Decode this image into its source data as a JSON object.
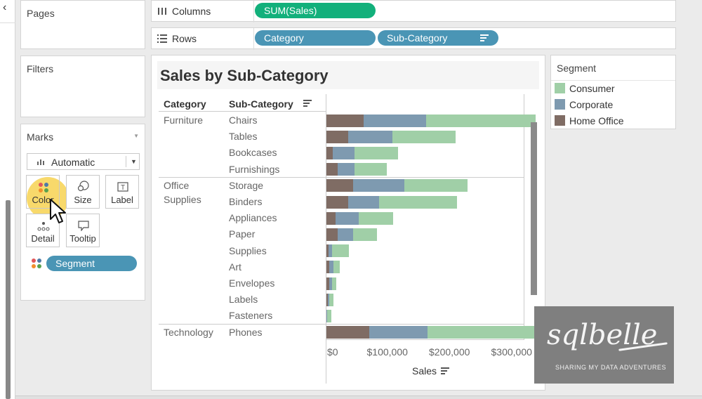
{
  "pages": {
    "title": "Pages"
  },
  "filters": {
    "title": "Filters"
  },
  "marks": {
    "title": "Marks",
    "mark_type": "Automatic",
    "buttons": {
      "color": "Color",
      "size": "Size",
      "label": "Label",
      "detail": "Detail",
      "tooltip": "Tooltip"
    },
    "color_pill": "Segment"
  },
  "shelves": {
    "columns": {
      "label": "Columns",
      "pills": [
        "SUM(Sales)"
      ]
    },
    "rows": {
      "label": "Rows",
      "pills": [
        "Category",
        "Sub-Category"
      ]
    }
  },
  "view": {
    "title": "Sales by Sub-Category",
    "headers": {
      "category": "Category",
      "subcategory": "Sub-Category"
    },
    "axis": {
      "title": "Sales",
      "ticks": [
        "$0",
        "$100,000",
        "$200,000",
        "$300,000"
      ]
    }
  },
  "legend": {
    "title": "Segment",
    "items": [
      {
        "label": "Consumer",
        "color": "#a0cfa7"
      },
      {
        "label": "Corporate",
        "color": "#7e9ab0"
      },
      {
        "label": "Home Office",
        "color": "#7f6c64"
      }
    ]
  },
  "watermark": {
    "logo": "sqlbelle",
    "tagline": "SHARING MY DATA ADVENTURES"
  },
  "chart_data": {
    "type": "bar",
    "title": "Sales by Sub-Category",
    "xlabel": "Sales",
    "orientation": "horizontal",
    "stacked": true,
    "xlim": [
      0,
      340000
    ],
    "groups": [
      {
        "category": "Furniture",
        "subcategories": [
          "Chairs",
          "Tables",
          "Bookcases",
          "Furnishings"
        ]
      },
      {
        "category": "Office\nSupplies",
        "subcategories": [
          "Storage",
          "Binders",
          "Appliances",
          "Paper",
          "Supplies",
          "Art",
          "Envelopes",
          "Labels",
          "Fasteners"
        ]
      },
      {
        "category": "Technology",
        "subcategories": [
          "Phones"
        ]
      }
    ],
    "series": [
      {
        "name": "Home Office",
        "color": "#7f6c64",
        "values": [
          60000,
          35000,
          10000,
          18000,
          43000,
          35000,
          15000,
          18000,
          3000,
          5000,
          4000,
          2000,
          500,
          69000
        ]
      },
      {
        "name": "Corporate",
        "color": "#7e9ab0",
        "values": [
          101000,
          71000,
          35000,
          27000,
          82000,
          50000,
          37000,
          25000,
          6000,
          6000,
          5000,
          3000,
          300,
          94000
        ]
      },
      {
        "name": "Consumer",
        "color": "#a0cfa7",
        "values": [
          176000,
          102000,
          70000,
          52000,
          102000,
          125000,
          55000,
          38000,
          27000,
          10000,
          7000,
          6000,
          7000,
          171000
        ]
      }
    ]
  }
}
